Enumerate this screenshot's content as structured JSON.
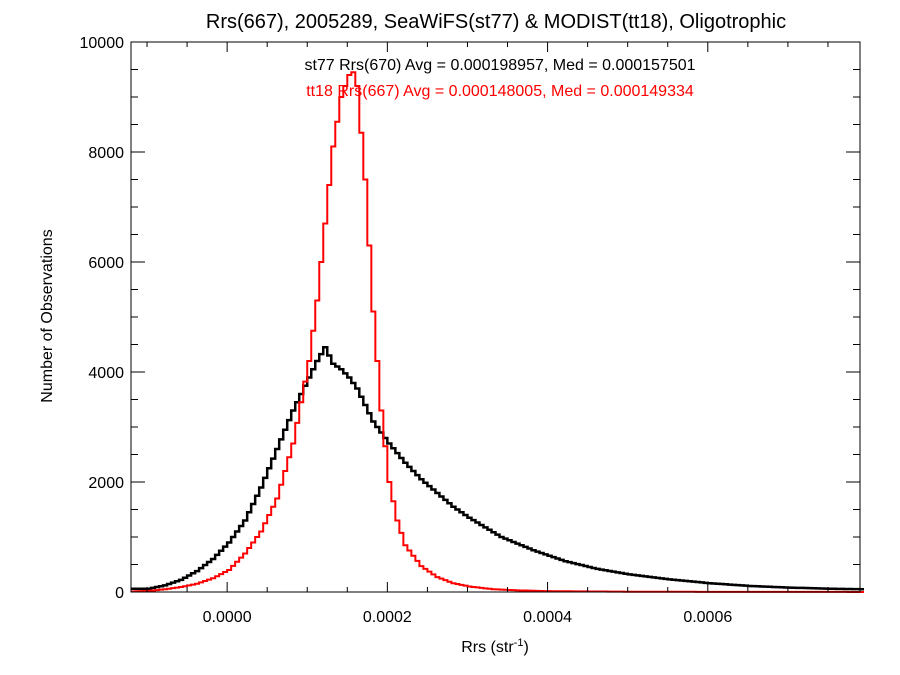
{
  "chart_data": {
    "type": "histogram",
    "title": "Rrs(667), 2005289, SeaWiFS(st77) & MODIST(tt18), Oligotrophic",
    "xlabel": {
      "base": "Rrs (str",
      "sup": "-1",
      "end": ")"
    },
    "ylabel": "Number of Observations",
    "xlim": [
      -0.00012,
      0.00079
    ],
    "ylim": [
      0,
      10000
    ],
    "x_ticks": [
      0.0,
      0.0002,
      0.0004,
      0.0006
    ],
    "x_tick_labels": [
      "0.0000",
      "0.0002",
      "0.0004",
      "0.0006"
    ],
    "y_ticks": [
      0,
      2000,
      4000,
      6000,
      8000,
      10000
    ],
    "y_tick_labels": [
      "0",
      "2000",
      "4000",
      "6000",
      "8000",
      "10000"
    ],
    "grid": false,
    "annotations": [
      {
        "series": "st77",
        "text": "st77 Rrs(670) Avg = 0.000198957, Med = 0.000157501",
        "color": "#000000"
      },
      {
        "series": "tt18",
        "text": "tt18 Rrs(667) Avg = 0.000148005, Med = 0.000149334",
        "color": "#ff0000"
      }
    ],
    "series": [
      {
        "name": "st77",
        "color": "#000000",
        "stroke_width": 2.5,
        "x": [
          -0.0001,
          -8e-05,
          -6e-05,
          -4e-05,
          -2e-05,
          0.0,
          2e-05,
          4e-05,
          6e-05,
          8e-05,
          0.0001,
          0.00011,
          0.00012,
          0.00013,
          0.00014,
          0.00015,
          0.00016,
          0.00017,
          0.00018,
          0.0002,
          0.00022,
          0.00024,
          0.00026,
          0.00028,
          0.0003,
          0.00034,
          0.00038,
          0.00042,
          0.00046,
          0.0005,
          0.00055,
          0.0006,
          0.00065,
          0.0007,
          0.00075,
          0.00079
        ],
        "y": [
          60,
          120,
          220,
          380,
          600,
          900,
          1300,
          1900,
          2600,
          3300,
          3900,
          4200,
          4450,
          4150,
          4050,
          3900,
          3700,
          3400,
          3100,
          2700,
          2350,
          2050,
          1800,
          1550,
          1350,
          1000,
          760,
          560,
          420,
          320,
          230,
          160,
          110,
          80,
          60,
          50
        ]
      },
      {
        "name": "tt18",
        "color": "#ff0000",
        "stroke_width": 2,
        "x": [
          -0.00012,
          -0.0001,
          -8e-05,
          -6e-05,
          -4e-05,
          -2e-05,
          0.0,
          2e-05,
          4e-05,
          6e-05,
          8e-05,
          0.0001,
          0.00011,
          0.00012,
          0.00013,
          0.00014,
          0.00015,
          0.000155,
          0.00016,
          0.00017,
          0.00018,
          0.00019,
          0.0002,
          0.00021,
          0.00022,
          0.00024,
          0.00026,
          0.00028,
          0.0003,
          0.00033,
          0.00036,
          0.0004,
          0.00045,
          0.0005,
          0.0006,
          0.0007,
          0.00079
        ],
        "y": [
          10,
          20,
          50,
          90,
          150,
          250,
          400,
          700,
          1100,
          1700,
          2700,
          4200,
          5300,
          6700,
          8100,
          9000,
          9400,
          9450,
          9200,
          7500,
          5100,
          3300,
          2000,
          1300,
          850,
          470,
          270,
          160,
          100,
          50,
          30,
          15,
          10,
          5,
          3,
          2,
          1
        ]
      }
    ]
  }
}
